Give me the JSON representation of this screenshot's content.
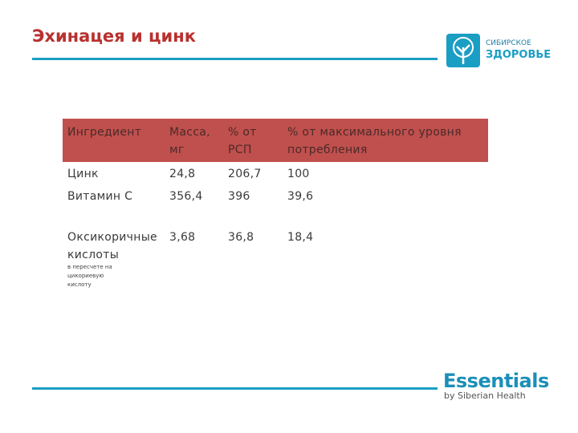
{
  "header": {
    "title": "Эхинацея и цинк",
    "logo_top": "СИБИРСКОЕ",
    "logo_bottom": "ЗДОРОВЬЕ"
  },
  "table": {
    "headers": [
      [
        "Ингредиент"
      ],
      [
        "Масса,",
        "мг"
      ],
      [
        "% от",
        "РСП"
      ],
      [
        "% от максимального уровня",
        "потребления"
      ]
    ],
    "rows": [
      [
        [
          "Цинк"
        ],
        [
          "24,8"
        ],
        [
          "206,7"
        ],
        [
          "100"
        ]
      ],
      [
        [
          "Витамин С"
        ],
        [
          "356,4"
        ],
        [
          "396"
        ],
        [
          "39,6"
        ]
      ],
      [
        [
          "Оксикоричные",
          "кислоты"
        ],
        [
          "3,68"
        ],
        [
          "36,8"
        ],
        [
          "18,4"
        ]
      ]
    ],
    "note": [
      "в пересчете на",
      "цикориевую",
      "кислоту"
    ]
  },
  "footer": {
    "brand": "Essentials",
    "tagline": "by Siberian Health"
  }
}
